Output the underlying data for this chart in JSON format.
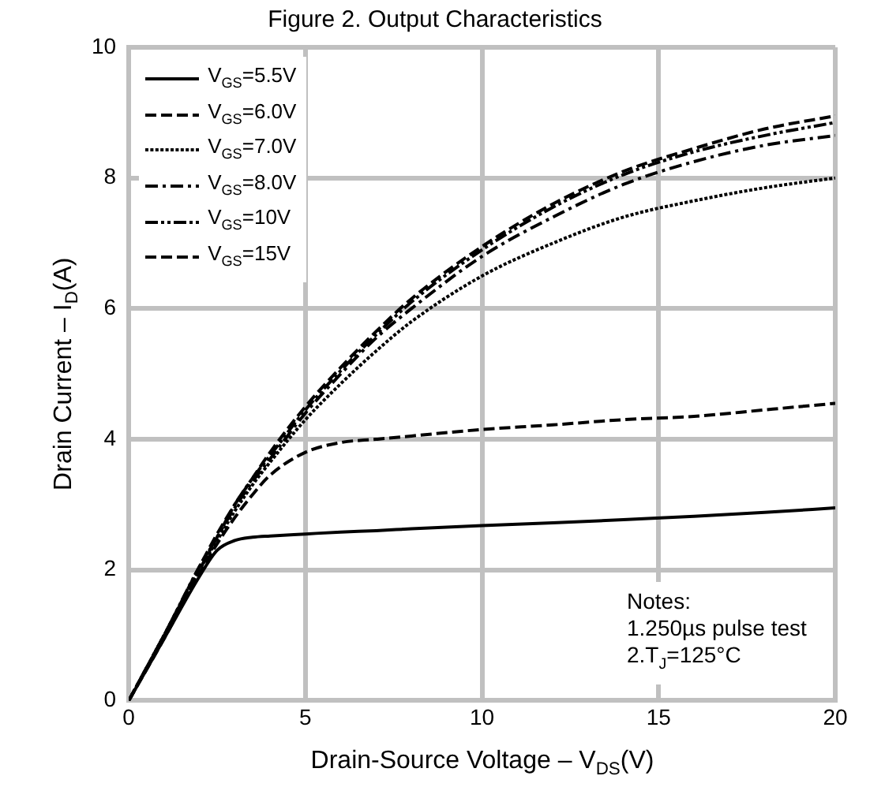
{
  "chart_data": {
    "type": "line",
    "title": "Figure 2. Output Characteristics",
    "xlabel": "Drain-Source Voltage – V$_{DS}$(V)",
    "ylabel": "Drain Current – I$_{D}$(A)",
    "x": [
      0,
      1,
      2,
      2.5,
      3,
      3.5,
      4,
      5,
      6,
      7,
      8,
      10,
      12,
      14,
      16,
      18,
      20
    ],
    "xlim": [
      0,
      20
    ],
    "xticks": [
      0,
      5,
      10,
      15,
      20
    ],
    "ylim": [
      0,
      10
    ],
    "yticks": [
      0,
      2,
      4,
      6,
      8,
      10
    ],
    "grid": true,
    "legend": "top left",
    "marker": "none",
    "series": [
      {
        "name": "V$_{GS}$=5.5V",
        "color": "#000000",
        "line_style": "solid",
        "values": [
          0,
          0.95,
          1.9,
          2.3,
          2.45,
          2.5,
          2.52,
          2.55,
          2.58,
          2.6,
          2.63,
          2.68,
          2.72,
          2.77,
          2.82,
          2.88,
          2.95
        ]
      },
      {
        "name": "V$_{GS}$=6.0V",
        "color": "#000000",
        "line_style": "dashed",
        "values": [
          0,
          0.95,
          1.95,
          2.4,
          2.8,
          3.15,
          3.45,
          3.8,
          3.95,
          4.0,
          4.05,
          4.15,
          4.22,
          4.3,
          4.35,
          4.45,
          4.55
        ]
      },
      {
        "name": "V$_{GS}$=7.0V",
        "color": "#000000",
        "line_style": "dotted",
        "values": [
          0,
          1.0,
          2.0,
          2.45,
          2.9,
          3.3,
          3.65,
          4.3,
          4.85,
          5.35,
          5.8,
          6.5,
          7.0,
          7.4,
          7.65,
          7.85,
          8.0
        ]
      },
      {
        "name": "V$_{GS}$=8.0V",
        "color": "#000000",
        "line_style": "dashdot",
        "values": [
          0,
          1.0,
          2.0,
          2.5,
          2.95,
          3.35,
          3.7,
          4.4,
          5.0,
          5.55,
          6.0,
          6.8,
          7.4,
          7.9,
          8.25,
          8.5,
          8.65
        ]
      },
      {
        "name": "V$_{GS}$=10V",
        "color": "#000000",
        "line_style": "dashdotdot",
        "values": [
          0,
          1.0,
          2.05,
          2.5,
          3.0,
          3.4,
          3.75,
          4.45,
          5.05,
          5.6,
          6.1,
          6.9,
          7.55,
          8.05,
          8.4,
          8.65,
          8.85
        ]
      },
      {
        "name": "V$_{GS}$=15V",
        "color": "#000000",
        "line_style": "dashed",
        "values": [
          0,
          1.0,
          2.05,
          2.55,
          3.0,
          3.4,
          3.8,
          4.5,
          5.1,
          5.65,
          6.15,
          6.95,
          7.6,
          8.1,
          8.45,
          8.75,
          8.95
        ]
      }
    ],
    "annotations": [
      "Notes:\n1.250µs pulse test\n2.T$_{J}$=125°C"
    ]
  }
}
